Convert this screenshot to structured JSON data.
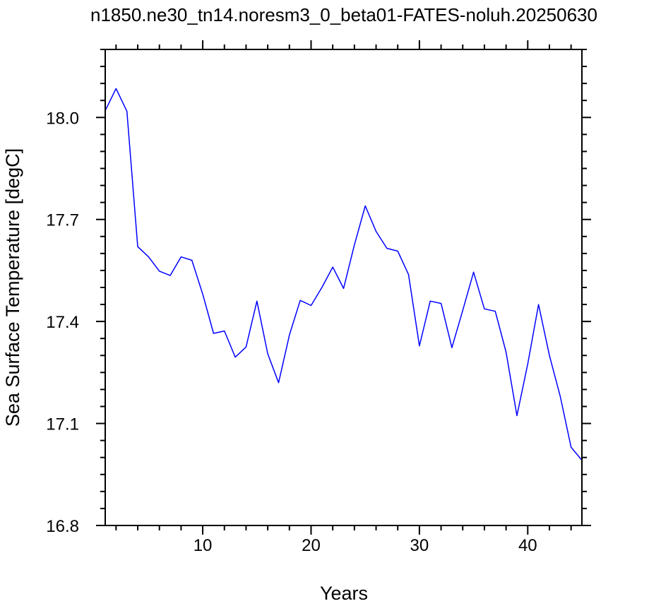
{
  "chart_data": {
    "type": "line",
    "title": "n1850.ne30_tn14.noresm3_0_beta01-FATES-noluh.20250630",
    "xlabel": "Years",
    "ylabel": "Sea Surface Temperature [degC]",
    "xlim": [
      1,
      45
    ],
    "ylim": [
      16.8,
      18.2
    ],
    "x_ticks": [
      10,
      20,
      30,
      40
    ],
    "y_ticks": [
      16.8,
      17.1,
      17.4,
      17.7,
      18.0
    ],
    "y_tick_labels": [
      "16.8",
      "17.1",
      "17.4",
      "17.7",
      "18.0"
    ],
    "grid": false,
    "series": [
      {
        "color": "#0000ff",
        "x": [
          1,
          2,
          3,
          4,
          5,
          6,
          7,
          8,
          9,
          10,
          11,
          12,
          13,
          14,
          15,
          16,
          17,
          18,
          19,
          20,
          21,
          22,
          23,
          24,
          25,
          26,
          27,
          28,
          29,
          30,
          31,
          32,
          33,
          34,
          35,
          36,
          37,
          38,
          39,
          40,
          41,
          42,
          43,
          44,
          45
        ],
        "values": [
          18.02,
          18.085,
          18.018,
          17.62,
          17.59,
          17.548,
          17.535,
          17.59,
          17.58,
          17.48,
          17.365,
          17.372,
          17.295,
          17.325,
          17.46,
          17.305,
          17.22,
          17.36,
          17.462,
          17.447,
          17.5,
          17.56,
          17.497,
          17.625,
          17.74,
          17.665,
          17.615,
          17.607,
          17.538,
          17.328,
          17.46,
          17.453,
          17.323,
          17.433,
          17.545,
          17.437,
          17.43,
          17.31,
          17.123,
          17.275,
          17.45,
          17.3,
          17.18,
          17.03,
          16.992
        ]
      }
    ]
  }
}
